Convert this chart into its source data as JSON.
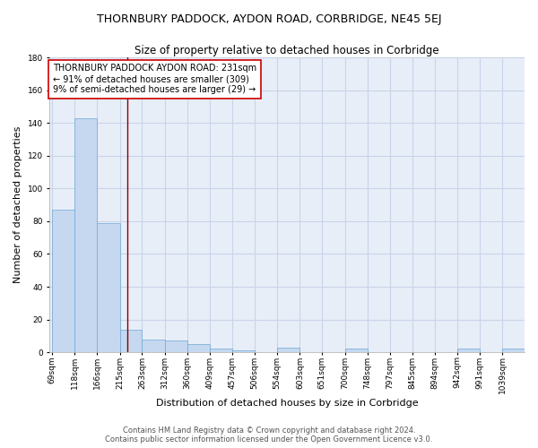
{
  "title": "THORNBURY PADDOCK, AYDON ROAD, CORBRIDGE, NE45 5EJ",
  "subtitle": "Size of property relative to detached houses in Corbridge",
  "xlabel": "Distribution of detached houses by size in Corbridge",
  "ylabel": "Number of detached properties",
  "bar_edges": [
    69,
    118,
    166,
    215,
    263,
    312,
    360,
    409,
    457,
    506,
    554,
    603,
    651,
    700,
    748,
    797,
    845,
    894,
    942,
    991,
    1039
  ],
  "bar_heights": [
    87,
    143,
    79,
    14,
    8,
    7,
    5,
    2,
    1,
    0,
    3,
    0,
    0,
    2,
    0,
    0,
    0,
    0,
    2,
    0,
    2
  ],
  "bar_color": "#c5d8f0",
  "bar_edge_color": "#6fa8d6",
  "vline_x": 231,
  "vline_color": "#8b0000",
  "annotation_text": "THORNBURY PADDOCK AYDON ROAD: 231sqm\n← 91% of detached houses are smaller (309)\n9% of semi-detached houses are larger (29) →",
  "annotation_box_color": "white",
  "annotation_box_edge_color": "#cc0000",
  "ylim": [
    0,
    180
  ],
  "yticks": [
    0,
    20,
    40,
    60,
    80,
    100,
    120,
    140,
    160,
    180
  ],
  "footnote": "Contains HM Land Registry data © Crown copyright and database right 2024.\nContains public sector information licensed under the Open Government Licence v3.0.",
  "bg_color": "#e8eef8",
  "grid_color": "#c8d4e8",
  "title_fontsize": 9,
  "subtitle_fontsize": 8.5,
  "xlabel_fontsize": 8,
  "ylabel_fontsize": 8,
  "tick_fontsize": 6.5,
  "annotation_fontsize": 7,
  "footnote_fontsize": 6
}
